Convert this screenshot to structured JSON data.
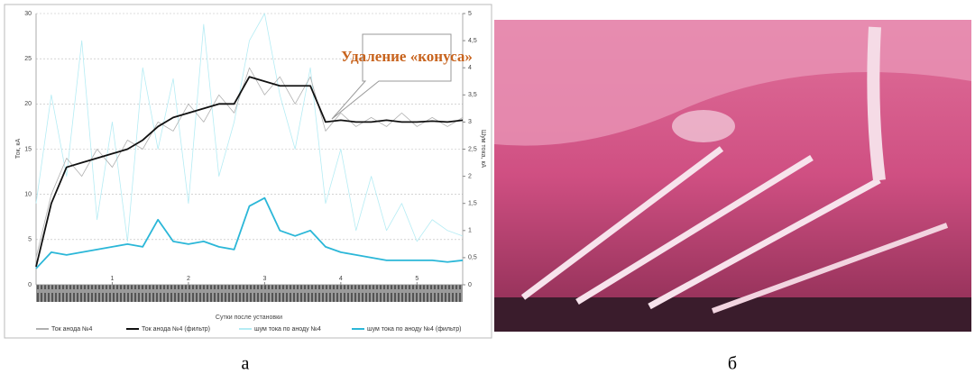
{
  "chart_data": {
    "type": "line",
    "x_label": "Сутки после установки",
    "y_label": "Ток, кА",
    "y2_label": "Шум тока, кА",
    "annotation": "Удаление «конуса»",
    "xlim": [
      0,
      5.6
    ],
    "xticks": [
      1,
      2,
      3,
      4,
      5
    ],
    "ylim": [
      0,
      30
    ],
    "yticks": [
      0,
      5,
      10,
      15,
      20,
      25,
      30
    ],
    "y2lim": [
      0,
      5
    ],
    "y2ticks": [
      0,
      {
        "value": 0.5,
        "label": "0,5"
      },
      1,
      {
        "value": 1.5,
        "label": "1,5"
      },
      2,
      {
        "value": 2.5,
        "label": "2,5"
      },
      3,
      {
        "value": 3.5,
        "label": "3,5"
      },
      4,
      {
        "value": 4.5,
        "label": "4,5"
      },
      5
    ],
    "grid": true,
    "x": [
      0,
      0.2,
      0.4,
      0.6,
      0.8,
      1.0,
      1.2,
      1.4,
      1.6,
      1.8,
      2.0,
      2.2,
      2.4,
      2.6,
      2.8,
      3.0,
      3.2,
      3.4,
      3.6,
      3.8,
      4.0,
      4.2,
      4.4,
      4.6,
      4.8,
      5.0,
      5.2,
      5.4,
      5.6
    ],
    "series": [
      {
        "name": "шум тока по аноду №4",
        "color": "#b5ecf4",
        "axis": "y2",
        "width": 0.8,
        "values": [
          1.5,
          3.5,
          2,
          4.5,
          1.2,
          3,
          0.8,
          4,
          2.5,
          3.8,
          1.5,
          4.8,
          2,
          3,
          4.5,
          5,
          3.5,
          2.5,
          4,
          1.5,
          2.5,
          1,
          2,
          1,
          1.5,
          0.8,
          1.2,
          1,
          0.9
        ]
      },
      {
        "name": "Ток анода №4",
        "color": "#b0b0b0",
        "width": 0.8,
        "values": [
          3,
          10,
          14,
          12,
          15,
          13,
          16,
          15,
          18,
          17,
          20,
          18,
          21,
          19,
          24,
          21,
          23,
          20,
          23,
          17,
          19,
          17.5,
          18.5,
          17.5,
          19,
          17.5,
          18.5,
          17.5,
          18.5
        ]
      },
      {
        "name": "Ток анода №4 (фильтр)",
        "color": "#111111",
        "width": 1.8,
        "values": [
          2,
          9,
          13,
          13.5,
          14,
          14.5,
          15,
          16,
          17.5,
          18.5,
          19,
          19.5,
          20,
          20,
          23,
          22.5,
          22,
          22,
          22,
          18,
          18.2,
          18,
          18,
          18.2,
          18,
          18,
          18.1,
          18,
          18.2
        ]
      },
      {
        "name": "шум тока по аноду №4 (фильтр)",
        "color": "#2bb7d8",
        "axis": "y2",
        "width": 1.8,
        "values": [
          0.3,
          0.6,
          0.55,
          0.6,
          0.65,
          0.7,
          0.75,
          0.7,
          1.2,
          0.8,
          0.75,
          0.8,
          0.7,
          0.65,
          1.45,
          1.6,
          1.0,
          0.9,
          1.0,
          0.7,
          0.6,
          0.55,
          0.5,
          0.45,
          0.45,
          0.45,
          0.45,
          0.42,
          0.45
        ]
      }
    ]
  },
  "captions": [
    "а",
    "б"
  ]
}
